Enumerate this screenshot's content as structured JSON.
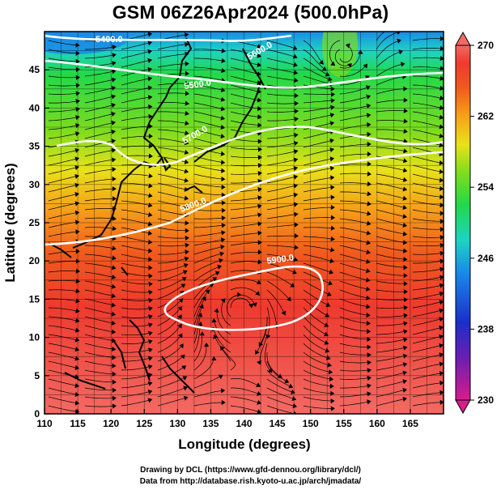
{
  "title": "GSM 06Z26Apr2024 (500.0hPa)",
  "x_axis": {
    "label": "Longitude (degrees)",
    "ticks": [
      "110",
      "115",
      "120",
      "125",
      "130",
      "135",
      "140",
      "145",
      "150",
      "155",
      "160",
      "165"
    ]
  },
  "y_axis": {
    "label": "Latitude  (degrees)",
    "ticks": [
      "0",
      "5",
      "10",
      "15",
      "20",
      "25",
      "30",
      "35",
      "40",
      "45"
    ]
  },
  "colorbar": {
    "ticks": [
      "270",
      "262",
      "254",
      "246",
      "238",
      "230"
    ],
    "colors": [
      "#d81b8e",
      "#6a1fb0",
      "#1a2fc8",
      "#1a8ae8",
      "#1ed3c4",
      "#22d84a",
      "#7ddc1f",
      "#e8e21a",
      "#f6a21a",
      "#f05a1e",
      "#ee3a2e",
      "#f26a64"
    ]
  },
  "contour_labels": {
    "c5400": "5400.0",
    "c5500": "5500.0",
    "c5600": "5600.0",
    "c5700": "5700.0",
    "c5800": "5800.0",
    "c5900": "5900.0"
  },
  "credits": {
    "line1": "Drawing by DCL (https://www.gfd-dennou.org/library/dcl/)",
    "line2": "Data from http://database.rish.kyoto-u.ac.jp/arch/jmadata/"
  },
  "chart_data": {
    "type": "heatmap",
    "title": "GSM 06Z26Apr2024 (500.0hPa)",
    "xlabel": "Longitude (degrees)",
    "ylabel": "Latitude  (degrees)",
    "xlim": [
      110,
      170
    ],
    "ylim": [
      0,
      50
    ],
    "colorbar_range": [
      230,
      270
    ],
    "colorbar_ticks": [
      230,
      238,
      246,
      254,
      262,
      270
    ],
    "contour_values": [
      5400,
      5500,
      5600,
      5700,
      5800,
      5900
    ],
    "grid": true
  }
}
